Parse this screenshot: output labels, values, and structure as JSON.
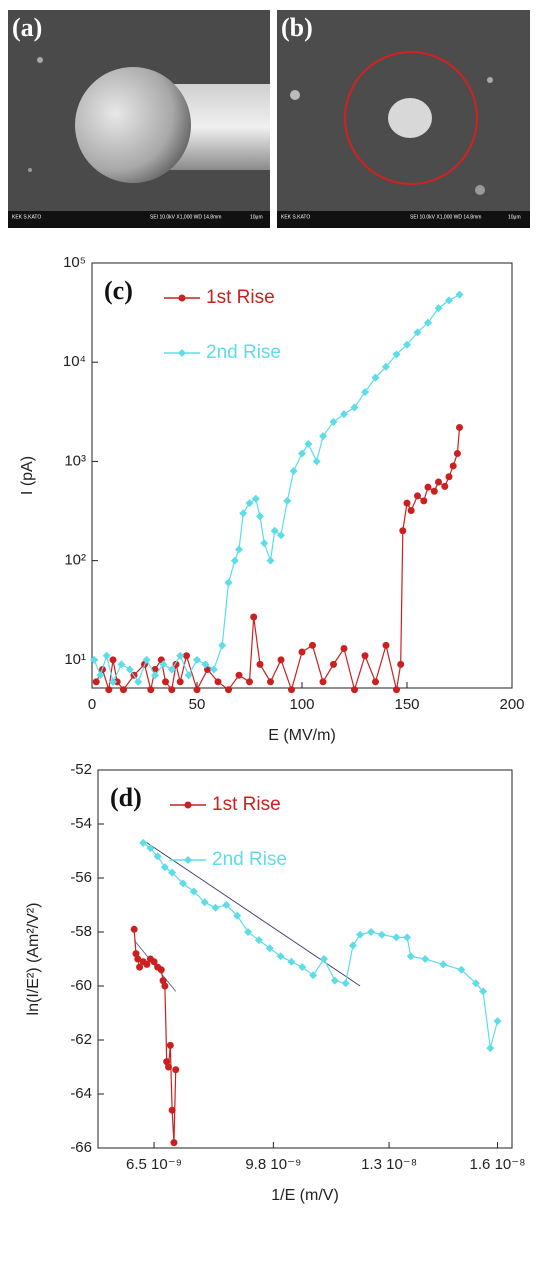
{
  "images": [
    {
      "panel_label": "(a)",
      "footer_left": "KEK S.KATO",
      "footer_right": "SEI    10.0kV  X1,000  WD 14.8mm",
      "scale": "10μm"
    },
    {
      "panel_label": "(b)",
      "footer_left": "KEK S.KATO",
      "footer_right": "SEI    10.0kV  X1,000  WD 14.8mm",
      "scale": "10μm"
    }
  ],
  "chart_data": [
    {
      "type": "line",
      "panel_label": "(c)",
      "x_label": "E (MV/m)",
      "y_label": "I (pA)",
      "log_y": true,
      "legend": "upper left",
      "xlim": [
        0,
        200
      ],
      "xticks": [
        0,
        50,
        100,
        150,
        200
      ],
      "ylim": [
        5.2,
        100000
      ],
      "yticks": [
        {
          "value": 10,
          "label": "10¹"
        },
        {
          "value": 100,
          "label": "10²"
        },
        {
          "value": 1000,
          "label": "10³"
        },
        {
          "value": 10000,
          "label": "10⁴"
        },
        {
          "value": 100000,
          "label": "10⁵"
        }
      ],
      "series": [
        {
          "name": "1st Rise",
          "color": "#cc2020",
          "marker": "circle",
          "x": [
            2,
            5,
            8,
            10,
            12,
            15,
            20,
            25,
            28,
            30,
            33,
            35,
            38,
            40,
            42,
            45,
            50,
            55,
            60,
            65,
            70,
            75,
            77,
            80,
            85,
            90,
            95,
            100,
            105,
            110,
            115,
            120,
            125,
            130,
            135,
            140,
            145,
            147,
            148,
            150,
            152,
            155,
            158,
            160,
            163,
            165,
            168,
            170,
            172,
            174,
            175
          ],
          "values": [
            6,
            8,
            5,
            10,
            6,
            5,
            7,
            9,
            5,
            8,
            10,
            6,
            5,
            9,
            6,
            11,
            5,
            8,
            6,
            5,
            7,
            6,
            27,
            9,
            6,
            10,
            5,
            12,
            14,
            6,
            9,
            13,
            5,
            11,
            6,
            14,
            5,
            9,
            200,
            380,
            320,
            450,
            400,
            550,
            500,
            620,
            560,
            700,
            900,
            1200,
            2200
          ]
        },
        {
          "name": "2nd Rise",
          "color": "#5cdde8",
          "marker": "diamond",
          "x": [
            1,
            4,
            7,
            10,
            14,
            18,
            22,
            26,
            30,
            34,
            38,
            42,
            46,
            50,
            54,
            58,
            62,
            65,
            68,
            70,
            72,
            75,
            78,
            80,
            82,
            85,
            87,
            90,
            93,
            96,
            100,
            103,
            107,
            110,
            115,
            120,
            125,
            130,
            135,
            140,
            145,
            150,
            155,
            160,
            165,
            170,
            175
          ],
          "values": [
            10,
            7,
            11,
            6,
            9,
            8,
            6,
            10,
            7,
            9,
            8,
            11,
            7,
            10,
            9,
            8,
            14,
            60,
            100,
            130,
            300,
            380,
            420,
            280,
            150,
            100,
            200,
            180,
            400,
            800,
            1200,
            1500,
            1000,
            1800,
            2500,
            3000,
            3500,
            5000,
            7000,
            9000,
            12000,
            15000,
            20000,
            25000,
            35000,
            42000,
            48000
          ]
        }
      ]
    },
    {
      "type": "line",
      "panel_label": "(d)",
      "x_label": "1/E (m/V)",
      "y_label": "ln(I/E²) (Am²/V²)",
      "log_y": false,
      "legend": "upper left",
      "xlim": [
        4.95e-09,
        1.64e-08
      ],
      "xticks": [
        {
          "value": 6.5e-09,
          "label": "6.5 10⁻⁹"
        },
        {
          "value": 9.8e-09,
          "label": "9.8 10⁻⁹"
        },
        {
          "value": 1.3e-08,
          "label": "1.3 10⁻⁸"
        },
        {
          "value": 1.6e-08,
          "label": "1.6 10⁻⁸"
        }
      ],
      "ylim": [
        -66,
        -52
      ],
      "yticks": [
        -66,
        -64,
        -62,
        -60,
        -58,
        -56,
        -54,
        -52
      ],
      "series": [
        {
          "name": "1st Rise",
          "color": "#cc2020",
          "marker": "circle",
          "x": [
            5.95e-09,
            6e-09,
            6.05e-09,
            6.1e-09,
            6.2e-09,
            6.3e-09,
            6.4e-09,
            6.5e-09,
            6.6e-09,
            6.7e-09,
            6.75e-09,
            6.8e-09,
            6.85e-09,
            6.9e-09,
            6.95e-09,
            7e-09,
            7.05e-09,
            7.1e-09
          ],
          "values": [
            -57.9,
            -58.8,
            -59.0,
            -59.3,
            -59.1,
            -59.2,
            -59.0,
            -59.1,
            -59.3,
            -59.4,
            -59.8,
            -60.0,
            -62.8,
            -63.0,
            -62.2,
            -64.6,
            -65.8,
            -63.1
          ]
        },
        {
          "name": "2nd Rise",
          "color": "#5cdde8",
          "marker": "diamond",
          "x": [
            6.2e-09,
            6.4e-09,
            6.6e-09,
            6.8e-09,
            7e-09,
            7.3e-09,
            7.6e-09,
            7.9e-09,
            8.2e-09,
            8.5e-09,
            8.8e-09,
            9.1e-09,
            9.4e-09,
            9.7e-09,
            1e-08,
            1.03e-08,
            1.06e-08,
            1.09e-08,
            1.12e-08,
            1.15e-08,
            1.18e-08,
            1.2e-08,
            1.22e-08,
            1.25e-08,
            1.28e-08,
            1.32e-08,
            1.35e-08,
            1.36e-08,
            1.4e-08,
            1.45e-08,
            1.5e-08,
            1.54e-08,
            1.56e-08,
            1.58e-08,
            1.6e-08
          ],
          "values": [
            -54.7,
            -54.9,
            -55.2,
            -55.6,
            -55.8,
            -56.2,
            -56.5,
            -56.9,
            -57.1,
            -57.0,
            -57.4,
            -58.0,
            -58.3,
            -58.6,
            -58.9,
            -59.1,
            -59.3,
            -59.6,
            -59.0,
            -59.8,
            -59.9,
            -58.5,
            -58.1,
            -58.0,
            -58.1,
            -58.2,
            -58.2,
            -58.9,
            -59.0,
            -59.2,
            -59.4,
            -59.9,
            -60.2,
            -62.3,
            -61.3
          ]
        }
      ],
      "fits": [
        {
          "color": "#3a3a70",
          "x": [
            6.2e-09,
            1.22e-08
          ],
          "values": [
            -54.6,
            -60.0
          ]
        },
        {
          "color": "#5a5a90",
          "x": [
            5.95e-09,
            7.1e-09
          ],
          "values": [
            -58.3,
            -60.2
          ]
        }
      ]
    }
  ]
}
